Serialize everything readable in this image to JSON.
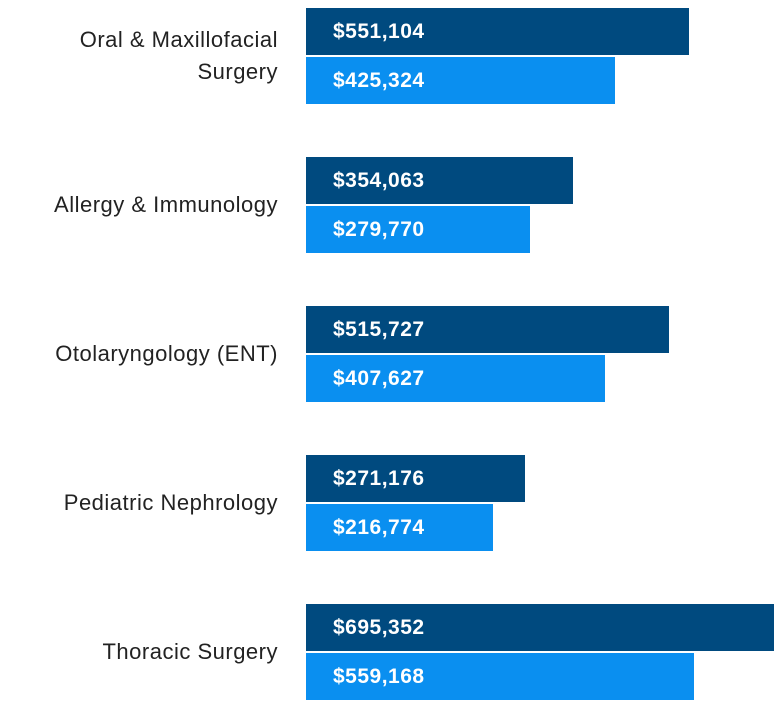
{
  "chart_data": {
    "type": "bar",
    "orientation": "horizontal",
    "categories": [
      "Oral & Maxillofacial Surgery",
      "Allergy & Immunology",
      "Otolaryngology (ENT)",
      "Pediatric Nephrology",
      "Thoracic Surgery"
    ],
    "xlim": [
      -100000,
      700000
    ],
    "series": [
      {
        "color": "#004a7f",
        "values": [
          551104,
          354063,
          515727,
          271176,
          695352
        ],
        "value_labels": [
          "$551,104",
          "$354,063",
          "$515,727",
          "$271,176",
          "$695,352"
        ]
      },
      {
        "color": "#0a8ff0",
        "values": [
          425324,
          279770,
          407627,
          216774,
          559168
        ],
        "value_labels": [
          "$425,324",
          "$279,770",
          "$407,627",
          "$216,774",
          "$559,168"
        ]
      }
    ]
  }
}
